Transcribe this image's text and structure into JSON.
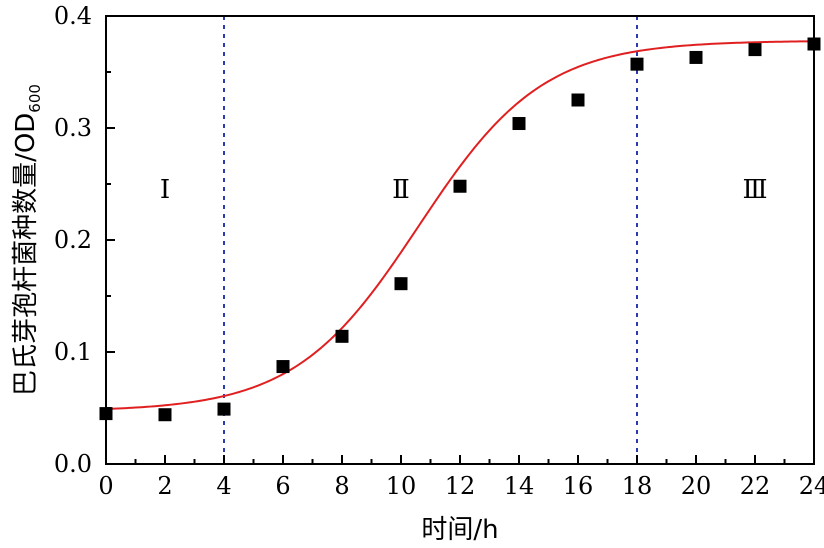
{
  "chart_data": {
    "type": "scatter",
    "title": "",
    "xlabel": "时间/h",
    "ylabel_main": "巴氏芽孢杆菌种数量/OD",
    "ylabel_sub": "600",
    "xlim": [
      0,
      24
    ],
    "ylim": [
      0,
      0.4
    ],
    "x_ticks": [
      "0",
      "2",
      "4",
      "6",
      "8",
      "10",
      "12",
      "14",
      "16",
      "18",
      "20",
      "22",
      "24"
    ],
    "y_ticks": [
      "0.0",
      "0.1",
      "0.2",
      "0.3",
      "0.4"
    ],
    "x": [
      0,
      2,
      4,
      6,
      8,
      10,
      12,
      14,
      16,
      18,
      20,
      22,
      24
    ],
    "y": [
      0.045,
      0.044,
      0.049,
      0.087,
      0.114,
      0.161,
      0.248,
      0.304,
      0.325,
      0.357,
      0.363,
      0.37,
      0.375
    ],
    "fit_curve": {
      "kind": "logistic",
      "lower": 0.047,
      "upper": 0.378,
      "midpoint": 10.6,
      "scale": 2.1
    },
    "reference_lines_x": [
      4,
      18
    ],
    "regions": [
      {
        "label": "Ⅰ",
        "x": 2
      },
      {
        "label": "Ⅱ",
        "x": 10
      },
      {
        "label": "Ⅲ",
        "x": 22
      }
    ],
    "colors": {
      "points": "#000000",
      "fit": "#e02020",
      "reference_lines": "#2a3bb0"
    },
    "grid": false,
    "legend": "none"
  }
}
